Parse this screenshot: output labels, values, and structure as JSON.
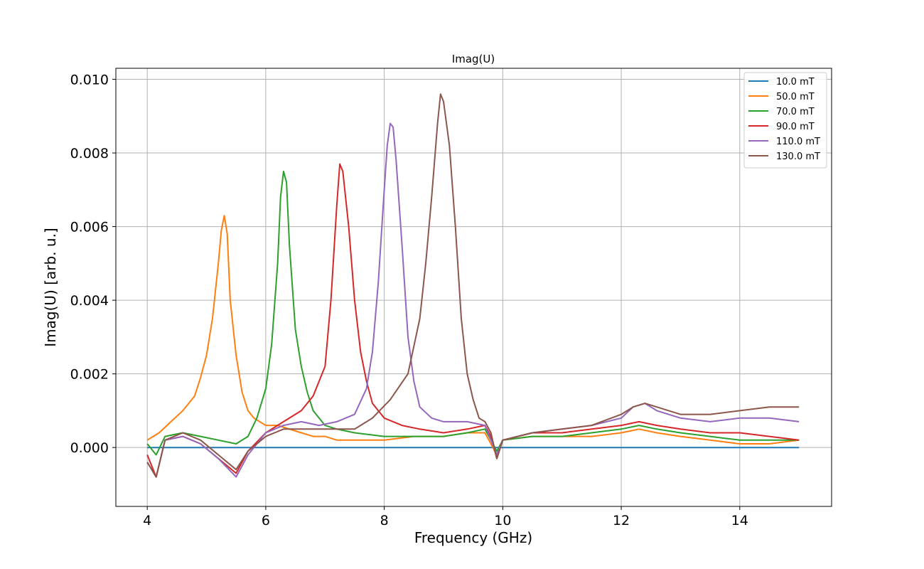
{
  "chart_data": {
    "type": "line",
    "title": "Imag(U)",
    "xlabel": "Frequency (GHz)",
    "ylabel": "Imag(U) [arb. u.]",
    "xlim": [
      3.47,
      15.55
    ],
    "ylim": [
      -0.0016,
      0.0103
    ],
    "x_ticks": [
      4,
      6,
      8,
      10,
      12,
      14
    ],
    "x_tick_labels": [
      "4",
      "6",
      "8",
      "10",
      "12",
      "14"
    ],
    "y_ticks": [
      0.0,
      0.002,
      0.004,
      0.006,
      0.008,
      0.01
    ],
    "y_tick_labels": [
      "0.000",
      "0.002",
      "0.004",
      "0.006",
      "0.008",
      "0.010"
    ],
    "grid": true,
    "legend_position": "top-right",
    "series": [
      {
        "name": "10.0 mT",
        "color": "#1f77b4",
        "x": [
          4.0,
          15.0
        ],
        "y": [
          0.0,
          0.0
        ]
      },
      {
        "name": "50.0 mT",
        "color": "#ff7f0e",
        "x": [
          4.0,
          4.1,
          4.2,
          4.4,
          4.6,
          4.8,
          4.9,
          5.0,
          5.1,
          5.2,
          5.25,
          5.3,
          5.35,
          5.4,
          5.5,
          5.6,
          5.7,
          5.8,
          6.0,
          6.2,
          6.4,
          6.6,
          6.8,
          7.0,
          7.2,
          7.5,
          8.0,
          8.5,
          9.0,
          9.4,
          9.7,
          9.8,
          9.9,
          10.0,
          10.5,
          11.0,
          11.5,
          12.0,
          12.3,
          12.6,
          13.0,
          13.5,
          14.0,
          14.5,
          15.0
        ],
        "y": [
          0.0002,
          0.0003,
          0.0004,
          0.0007,
          0.001,
          0.0014,
          0.0019,
          0.0025,
          0.0035,
          0.005,
          0.0059,
          0.0063,
          0.0058,
          0.004,
          0.0025,
          0.0015,
          0.001,
          0.0008,
          0.0006,
          0.0006,
          0.0005,
          0.0004,
          0.0003,
          0.0003,
          0.0002,
          0.0002,
          0.0002,
          0.0003,
          0.0003,
          0.0004,
          0.0004,
          0.0001,
          -0.0002,
          0.0002,
          0.0003,
          0.0003,
          0.0003,
          0.0004,
          0.0005,
          0.0004,
          0.0003,
          0.0002,
          0.0001,
          0.0001,
          0.0002
        ]
      },
      {
        "name": "70.0 mT",
        "color": "#2ca02c",
        "x": [
          4.0,
          4.15,
          4.3,
          4.6,
          4.9,
          5.2,
          5.5,
          5.7,
          5.85,
          6.0,
          6.1,
          6.2,
          6.25,
          6.3,
          6.35,
          6.4,
          6.5,
          6.6,
          6.7,
          6.8,
          7.0,
          7.2,
          7.5,
          8.0,
          8.5,
          9.0,
          9.4,
          9.7,
          9.8,
          9.9,
          10.0,
          10.5,
          11.0,
          11.5,
          12.0,
          12.3,
          12.6,
          13.0,
          13.5,
          14.0,
          14.5,
          15.0
        ],
        "y": [
          0.0001,
          -0.0002,
          0.0003,
          0.0004,
          0.0003,
          0.0002,
          0.0001,
          0.0003,
          0.0008,
          0.0016,
          0.0028,
          0.005,
          0.0068,
          0.0075,
          0.0072,
          0.0055,
          0.0032,
          0.0022,
          0.0015,
          0.001,
          0.0006,
          0.0005,
          0.0004,
          0.0003,
          0.0003,
          0.0003,
          0.0004,
          0.0005,
          0.0002,
          -0.0001,
          0.0002,
          0.0003,
          0.0003,
          0.0004,
          0.0005,
          0.0006,
          0.0005,
          0.0004,
          0.0003,
          0.0002,
          0.0002,
          0.0002
        ]
      },
      {
        "name": "90.0 mT",
        "color": "#d62728",
        "x": [
          4.0,
          4.15,
          4.3,
          4.6,
          4.9,
          5.2,
          5.5,
          5.7,
          6.0,
          6.3,
          6.6,
          6.8,
          7.0,
          7.1,
          7.2,
          7.25,
          7.3,
          7.4,
          7.5,
          7.6,
          7.7,
          7.8,
          8.0,
          8.3,
          8.6,
          9.0,
          9.4,
          9.7,
          9.8,
          9.9,
          10.0,
          10.5,
          11.0,
          11.5,
          12.0,
          12.3,
          12.6,
          13.0,
          13.5,
          14.0,
          14.5,
          15.0
        ],
        "y": [
          -0.0002,
          -0.0008,
          0.0002,
          0.0003,
          0.0001,
          -0.0003,
          -0.0007,
          -0.0001,
          0.0004,
          0.0007,
          0.001,
          0.0014,
          0.0022,
          0.004,
          0.0066,
          0.0077,
          0.0075,
          0.006,
          0.004,
          0.0026,
          0.0018,
          0.0012,
          0.0008,
          0.0006,
          0.0005,
          0.0004,
          0.0005,
          0.0006,
          0.0003,
          -0.0003,
          0.0002,
          0.0004,
          0.0004,
          0.0005,
          0.0006,
          0.0007,
          0.0006,
          0.0005,
          0.0004,
          0.0004,
          0.0003,
          0.0002
        ]
      },
      {
        "name": "110.0 mT",
        "color": "#9467bd",
        "x": [
          4.0,
          4.15,
          4.3,
          4.6,
          4.9,
          5.2,
          5.5,
          5.7,
          6.0,
          6.3,
          6.6,
          6.9,
          7.2,
          7.5,
          7.7,
          7.8,
          7.9,
          8.0,
          8.05,
          8.1,
          8.15,
          8.2,
          8.3,
          8.4,
          8.5,
          8.6,
          8.8,
          9.0,
          9.4,
          9.7,
          9.8,
          9.9,
          10.0,
          10.5,
          11.0,
          11.5,
          12.0,
          12.2,
          12.4,
          12.6,
          13.0,
          13.5,
          14.0,
          14.5,
          15.0
        ],
        "y": [
          -0.0004,
          -0.0008,
          0.0002,
          0.0003,
          0.0001,
          -0.0003,
          -0.0008,
          -0.0002,
          0.0004,
          0.0006,
          0.0007,
          0.0006,
          0.0007,
          0.0009,
          0.0016,
          0.0026,
          0.0045,
          0.007,
          0.0082,
          0.0088,
          0.0087,
          0.0078,
          0.0055,
          0.003,
          0.0018,
          0.0011,
          0.0008,
          0.0007,
          0.0007,
          0.0006,
          0.0002,
          -0.0002,
          0.0002,
          0.0004,
          0.0005,
          0.0006,
          0.0008,
          0.0011,
          0.0012,
          0.001,
          0.0008,
          0.0007,
          0.0008,
          0.0008,
          0.0007
        ]
      },
      {
        "name": "130.0 mT",
        "color": "#8c564b",
        "x": [
          4.0,
          4.15,
          4.3,
          4.6,
          4.9,
          5.2,
          5.5,
          5.7,
          6.0,
          6.3,
          6.6,
          6.9,
          7.2,
          7.5,
          7.8,
          8.1,
          8.4,
          8.6,
          8.7,
          8.8,
          8.9,
          8.95,
          9.0,
          9.1,
          9.2,
          9.3,
          9.4,
          9.5,
          9.6,
          9.7,
          9.8,
          9.9,
          10.0,
          10.5,
          11.0,
          11.5,
          12.0,
          12.2,
          12.4,
          12.6,
          12.8,
          13.0,
          13.5,
          14.0,
          14.5,
          15.0
        ],
        "y": [
          -0.0004,
          -0.0008,
          0.0002,
          0.0004,
          0.0002,
          -0.0002,
          -0.0006,
          -0.0001,
          0.0003,
          0.0005,
          0.0005,
          0.0005,
          0.0005,
          0.0005,
          0.0008,
          0.0013,
          0.002,
          0.0035,
          0.005,
          0.0068,
          0.0088,
          0.0096,
          0.0094,
          0.0082,
          0.006,
          0.0035,
          0.002,
          0.0013,
          0.0008,
          0.0007,
          0.0004,
          -0.0003,
          0.0002,
          0.0004,
          0.0005,
          0.0006,
          0.0009,
          0.0011,
          0.0012,
          0.0011,
          0.001,
          0.0009,
          0.0009,
          0.001,
          0.0011,
          0.0011
        ]
      }
    ]
  }
}
